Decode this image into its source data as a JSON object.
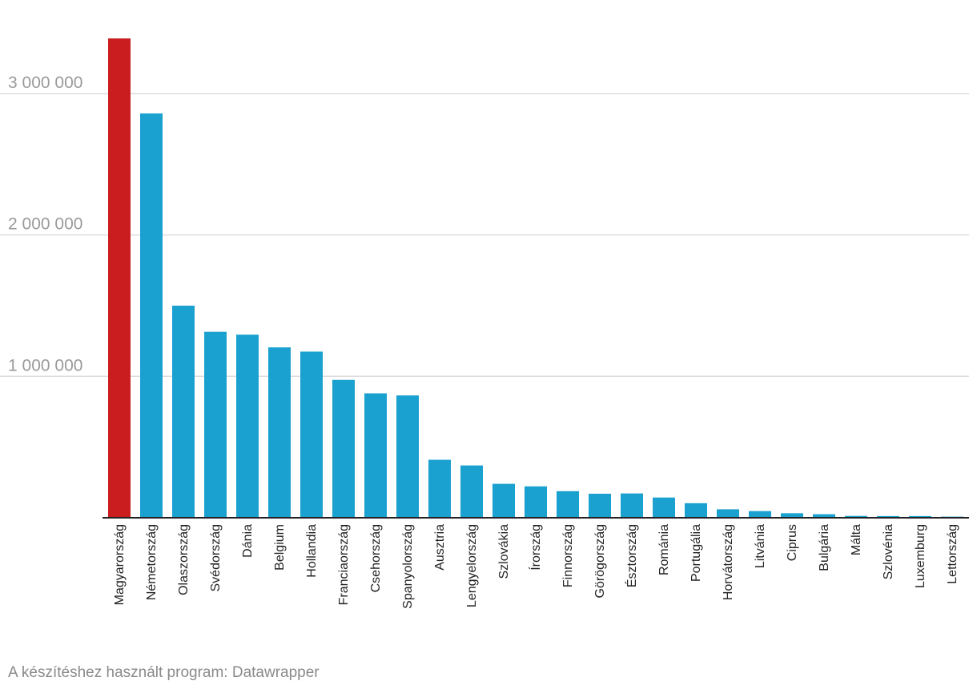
{
  "chart_data": {
    "type": "bar",
    "categories": [
      "Magyarország",
      "Németország",
      "Olaszország",
      "Svédország",
      "Dánia",
      "Belgium",
      "Hollandia",
      "Franciaország",
      "Csehország",
      "Spanyolország",
      "Ausztria",
      "Lengyelország",
      "Szlovákia",
      "Írország",
      "Finnország",
      "Görögország",
      "Észtország",
      "Románia",
      "Portugália",
      "Horvátország",
      "Litvánia",
      "Ciprus",
      "Bulgária",
      "Málta",
      "Szlovénia",
      "Luxemburg",
      "Lettország"
    ],
    "values": [
      3390000,
      2860000,
      1500000,
      1315000,
      1295000,
      1205000,
      1175000,
      975000,
      880000,
      865000,
      410000,
      370000,
      240000,
      222000,
      188000,
      170000,
      172000,
      143000,
      103000,
      60000,
      47000,
      32000,
      25000,
      13000,
      12000,
      12000,
      8000
    ],
    "highlight_index": 0,
    "colors": {
      "highlight": "#c91d20",
      "default": "#1aa1cf",
      "grid": "#dddddd",
      "axis": "#222222"
    },
    "yticks": [
      1000000,
      2000000,
      3000000
    ],
    "ytick_labels": [
      "1 000 000",
      "2 000 000",
      "3 000 000"
    ],
    "ylim": [
      0,
      3390000
    ],
    "grid": true,
    "legend": "none"
  },
  "footer": {
    "credit": "A készítéshez használt program: Datawrapper"
  }
}
